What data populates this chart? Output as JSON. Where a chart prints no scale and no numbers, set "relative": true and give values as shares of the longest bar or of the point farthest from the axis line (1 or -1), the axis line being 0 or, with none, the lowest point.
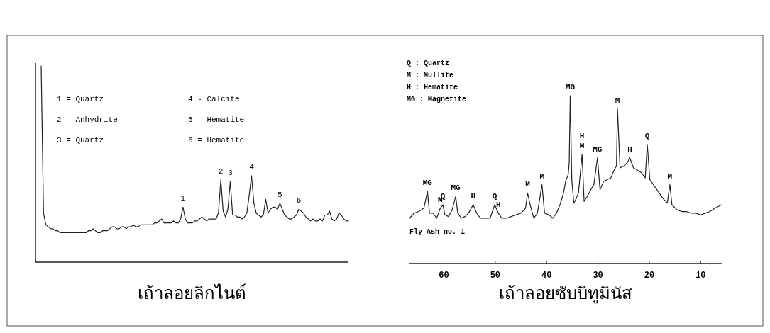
{
  "chart_data": [
    {
      "type": "line",
      "relative": true,
      "xlabel": "เถ้าลอยลิกไนต์",
      "color": "#222222",
      "categories": [
        null,
        null,
        null,
        null,
        null,
        null,
        null,
        null,
        null,
        null,
        null,
        null,
        null,
        null,
        null,
        null,
        null,
        null,
        null,
        null,
        null,
        null,
        null,
        null,
        null,
        null,
        null,
        null,
        null,
        null,
        null,
        null,
        null,
        null,
        null,
        null,
        null,
        null,
        null,
        null,
        null,
        null,
        null,
        null,
        null,
        null,
        null,
        null,
        null,
        null,
        null,
        null,
        null,
        null,
        null,
        null,
        null,
        null,
        null,
        null,
        null,
        null,
        null,
        null,
        null,
        null,
        null,
        null,
        null,
        null,
        null,
        null,
        null,
        null,
        null,
        null,
        null,
        null,
        null,
        null,
        null,
        null,
        null,
        null,
        null,
        null,
        null,
        null,
        null,
        null,
        null,
        null,
        null,
        null,
        null,
        null,
        null,
        null,
        null,
        null,
        null,
        null,
        null,
        null,
        null,
        null,
        null,
        null,
        null,
        null,
        null,
        null,
        null,
        null,
        null,
        null,
        null,
        null,
        null,
        null,
        null,
        null,
        null,
        null,
        null,
        null,
        null,
        null,
        null,
        null,
        null
      ],
      "values": [
        1.0,
        0.25,
        0.19,
        0.18,
        0.17,
        0.17,
        0.16,
        0.16,
        0.15,
        0.15,
        0.15,
        0.15,
        0.15,
        0.15,
        0.15,
        0.15,
        0.15,
        0.15,
        0.15,
        0.15,
        0.16,
        0.16,
        0.17,
        0.16,
        0.15,
        0.15,
        0.16,
        0.16,
        0.16,
        0.17,
        0.18,
        0.18,
        0.17,
        0.17,
        0.18,
        0.18,
        0.17,
        0.18,
        0.18,
        0.19,
        0.18,
        0.18,
        0.19,
        0.19,
        0.19,
        0.19,
        0.19,
        0.19,
        0.2,
        0.2,
        0.21,
        0.22,
        0.2,
        0.2,
        0.2,
        0.2,
        0.21,
        0.2,
        0.2,
        0.22,
        0.28,
        0.22,
        0.2,
        0.2,
        0.2,
        0.21,
        0.21,
        0.22,
        0.23,
        0.22,
        0.21,
        0.22,
        0.22,
        0.22,
        0.22,
        0.25,
        0.42,
        0.26,
        0.23,
        0.27,
        0.41,
        0.24,
        0.24,
        0.23,
        0.23,
        0.22,
        0.23,
        0.25,
        0.34,
        0.44,
        0.3,
        0.25,
        0.24,
        0.23,
        0.24,
        0.32,
        0.25,
        0.27,
        0.28,
        0.28,
        0.27,
        0.3,
        0.27,
        0.24,
        0.23,
        0.22,
        0.22,
        0.23,
        0.24,
        0.27,
        0.26,
        0.25,
        0.23,
        0.22,
        0.21,
        0.22,
        0.21,
        0.21,
        0.22,
        0.21,
        0.24,
        0.24,
        0.26,
        0.22,
        0.21,
        0.22,
        0.25,
        0.24,
        0.22,
        0.21,
        0.21
      ],
      "annotations": [
        "1 = Quartz",
        "2 = Anhydrite",
        "3 = Quartz",
        "4 - Calcite",
        "5 = Hematite",
        "6 = Hematite",
        {
          "text": "1",
          "y": 0.28
        },
        {
          "text": "2",
          "y": 0.42
        },
        {
          "text": "3",
          "y": 0.41
        },
        {
          "text": "4",
          "y": 0.44
        },
        {
          "text": "5",
          "y": 0.3
        },
        {
          "text": "6",
          "y": 0.27
        }
      ]
    },
    {
      "type": "line",
      "relative": true,
      "xlabel": "เถ้าลอยซับบิทูมินัส",
      "color": "#222222",
      "xlim": [
        66.7,
        5.9
      ],
      "xticks": [
        60,
        50,
        40,
        30,
        20,
        10
      ],
      "x": [
        66.7,
        65.8,
        64.9,
        63.9,
        63.2,
        62.8,
        62.1,
        61.4,
        60.7,
        60.2,
        59.8,
        59.1,
        58.4,
        57.7,
        57.3,
        56.6,
        55.9,
        55.2,
        54.3,
        53.6,
        52.9,
        52.0,
        51.0,
        50.1,
        49.4,
        48.7,
        47.8,
        46.9,
        46.0,
        45.0,
        44.1,
        43.7,
        43.2,
        42.5,
        41.8,
        40.9,
        40.4,
        39.5,
        38.8,
        38.1,
        37.4,
        36.7,
        36.3,
        35.8,
        35.6,
        35.4,
        35.1,
        34.7,
        34.2,
        33.8,
        33.1,
        32.7,
        32.1,
        31.4,
        30.8,
        30.1,
        29.6,
        28.9,
        28.2,
        27.5,
        26.8,
        26.4,
        26.2,
        25.7,
        25.0,
        24.3,
        23.8,
        23.1,
        22.5,
        21.5,
        20.8,
        20.4,
        19.9,
        19.2,
        18.3,
        17.4,
        16.5,
        16.0,
        15.6,
        14.6,
        13.7,
        12.8,
        11.9,
        11.0,
        10.0,
        9.1,
        8.2,
        7.2,
        5.9
      ],
      "values": [
        0.27,
        0.3,
        0.31,
        0.33,
        0.43,
        0.3,
        0.3,
        0.27,
        0.33,
        0.35,
        0.29,
        0.28,
        0.32,
        0.4,
        0.3,
        0.27,
        0.28,
        0.3,
        0.35,
        0.3,
        0.27,
        0.27,
        0.27,
        0.35,
        0.3,
        0.27,
        0.27,
        0.28,
        0.29,
        0.3,
        0.33,
        0.42,
        0.35,
        0.27,
        0.3,
        0.47,
        0.3,
        0.29,
        0.27,
        0.3,
        0.35,
        0.42,
        0.49,
        0.53,
        0.6,
        1.0,
        0.5,
        0.36,
        0.39,
        0.42,
        0.65,
        0.37,
        0.4,
        0.44,
        0.47,
        0.63,
        0.44,
        0.49,
        0.5,
        0.51,
        0.56,
        0.58,
        0.92,
        0.57,
        0.58,
        0.6,
        0.63,
        0.57,
        0.56,
        0.54,
        0.51,
        0.71,
        0.5,
        0.47,
        0.43,
        0.39,
        0.36,
        0.47,
        0.35,
        0.32,
        0.31,
        0.31,
        0.3,
        0.3,
        0.29,
        0.3,
        0.31,
        0.33,
        0.35
      ],
      "annotations": [
        "Q : Quartz",
        "M : Mullite",
        "H : Hematite",
        "MG : Magnetite",
        "Fly Ash no. 1",
        {
          "text": "MG",
          "x": 63.2,
          "y": 0.43
        },
        {
          "text": "M",
          "x": 60.7,
          "y": 0.33
        },
        {
          "text": "Q",
          "x": 60.2,
          "y": 0.35
        },
        {
          "text": "MG",
          "x": 57.7,
          "y": 0.4
        },
        {
          "text": "H",
          "x": 54.3,
          "y": 0.35
        },
        {
          "text": "Q",
          "x": 50.1,
          "y": 0.35
        },
        {
          "text": "H",
          "x": 49.4,
          "y": 0.3
        },
        {
          "text": "M",
          "x": 43.7,
          "y": 0.42
        },
        {
          "text": "M",
          "x": 40.9,
          "y": 0.47
        },
        {
          "text": "MG",
          "x": 35.4,
          "y": 1.0
        },
        {
          "text": "H",
          "x": 33.1,
          "y": 0.65
        },
        {
          "text": "M",
          "x": 33.1,
          "y": 0.65
        },
        {
          "text": "MG",
          "x": 30.1,
          "y": 0.63
        },
        {
          "text": "M",
          "x": 26.2,
          "y": 0.92
        },
        {
          "text": "H",
          "x": 23.8,
          "y": 0.63
        },
        {
          "text": "Q",
          "x": 20.4,
          "y": 0.71
        },
        {
          "text": "M",
          "x": 16.0,
          "y": 0.47
        }
      ]
    }
  ]
}
